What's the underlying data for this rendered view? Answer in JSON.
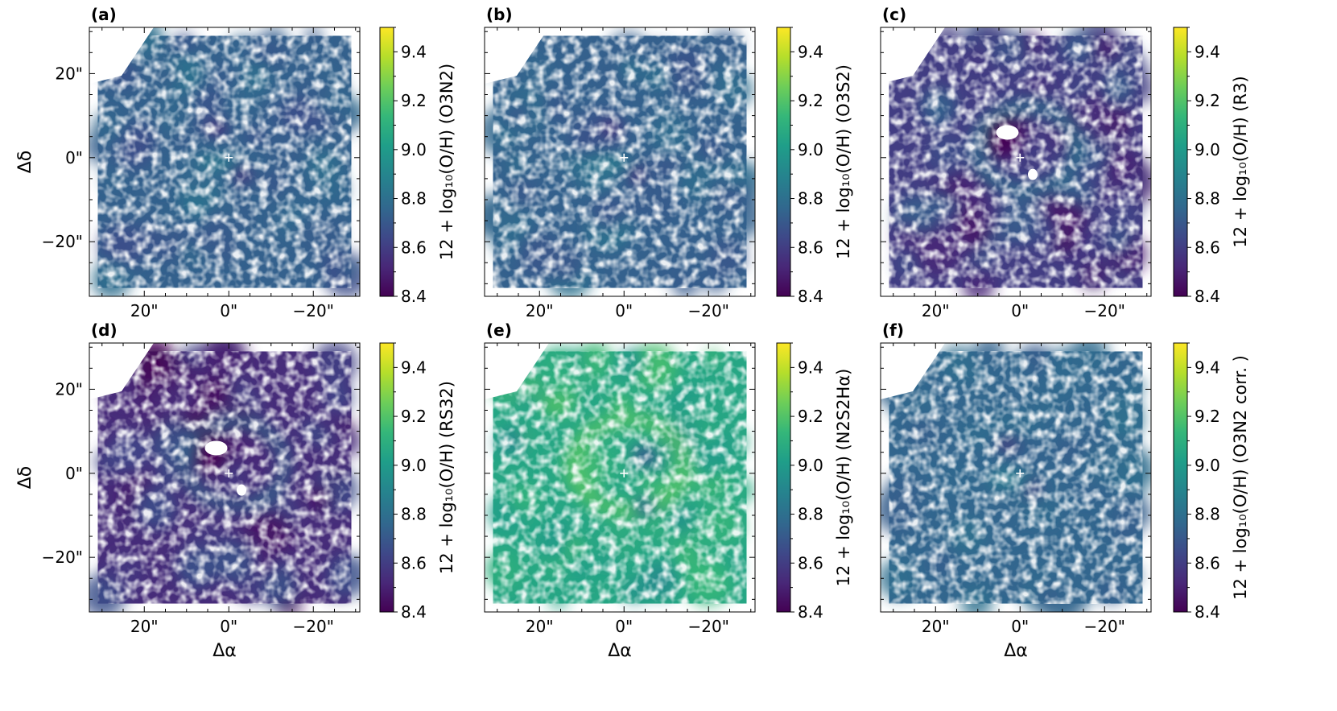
{
  "chart_data": [
    {
      "type": "heatmap",
      "panel_label": "(a)",
      "map_style": "smooth",
      "colorbar_label": "12 + log₁₀(O/H)",
      "indicator": "(O3N2)",
      "mean_value": 8.74,
      "xlabel": "",
      "ylabel": "Δδ",
      "x_ticks": [
        "20\"",
        "0\"",
        "−20\""
      ],
      "y_ticks": [
        "20\"",
        "0\"",
        "−20\""
      ],
      "colorbar_ticks": [
        "8.4",
        "8.6",
        "8.8",
        "9.0",
        "9.2",
        "9.4"
      ],
      "colorbar_range": [
        8.4,
        9.5
      ],
      "colormap": "viridis"
    },
    {
      "type": "heatmap",
      "panel_label": "(b)",
      "map_style": "smooth",
      "colorbar_label": "12 + log₁₀(O/H)",
      "indicator": "(O3S2)",
      "mean_value": 8.74,
      "xlabel": "",
      "ylabel": "",
      "x_ticks": [
        "20\"",
        "0\"",
        "−20\""
      ],
      "y_ticks": [],
      "colorbar_ticks": [
        "8.4",
        "8.6",
        "8.8",
        "9.0",
        "9.2",
        "9.4"
      ],
      "colorbar_range": [
        8.4,
        9.5
      ],
      "colormap": "viridis"
    },
    {
      "type": "heatmap",
      "panel_label": "(c)",
      "map_style": "contrast",
      "colorbar_label": "12 + log₁₀(O/H)",
      "indicator": "(R3)",
      "mean_value": 8.6,
      "xlabel": "",
      "ylabel": "",
      "x_ticks": [
        "20\"",
        "0\"",
        "−20\""
      ],
      "y_ticks": [],
      "colorbar_ticks": [
        "8.4",
        "8.6",
        "8.8",
        "9.0",
        "9.2",
        "9.4"
      ],
      "colorbar_range": [
        8.4,
        9.5
      ],
      "colormap": "viridis"
    },
    {
      "type": "heatmap",
      "panel_label": "(d)",
      "map_style": "contrast",
      "colorbar_label": "12 + log₁₀(O/H)",
      "indicator": "(RS32)",
      "mean_value": 8.54,
      "xlabel": "Δα",
      "ylabel": "Δδ",
      "x_ticks": [
        "20\"",
        "0\"",
        "−20\""
      ],
      "y_ticks": [
        "20\"",
        "0\"",
        "−20\""
      ],
      "colorbar_ticks": [
        "8.4",
        "8.6",
        "8.8",
        "9.0",
        "9.2",
        "9.4"
      ],
      "colorbar_range": [
        8.4,
        9.5
      ],
      "colormap": "viridis"
    },
    {
      "type": "heatmap",
      "panel_label": "(e)",
      "map_style": "bright",
      "colorbar_label": "12 + log₁₀(O/H)",
      "indicator": "(N2S2Hα)",
      "mean_value": 9.05,
      "xlabel": "Δα",
      "ylabel": "",
      "x_ticks": [
        "20\"",
        "0\"",
        "−20\""
      ],
      "y_ticks": [],
      "colorbar_ticks": [
        "8.4",
        "8.6",
        "8.8",
        "9.0",
        "9.2",
        "9.4"
      ],
      "colorbar_range": [
        8.4,
        9.5
      ],
      "colormap": "viridis"
    },
    {
      "type": "heatmap",
      "panel_label": "(f)",
      "map_style": "flat",
      "colorbar_label": "12 + log₁₀(O/H)",
      "indicator": "(O3N2 corr. )",
      "mean_value": 8.76,
      "xlabel": "Δα",
      "ylabel": "",
      "x_ticks": [
        "20\"",
        "0\"",
        "−20\""
      ],
      "y_ticks": [],
      "colorbar_ticks": [
        "8.4",
        "8.6",
        "8.8",
        "9.0",
        "9.2",
        "9.4"
      ],
      "colorbar_range": [
        8.4,
        9.5
      ],
      "colormap": "viridis"
    }
  ],
  "colors": {
    "viridis": [
      "#440154",
      "#482878",
      "#3e4989",
      "#31688e",
      "#26828e",
      "#1f9e89",
      "#35b779",
      "#6ece58",
      "#b5de2b",
      "#fde725"
    ],
    "center_marker": "#ffffff"
  }
}
